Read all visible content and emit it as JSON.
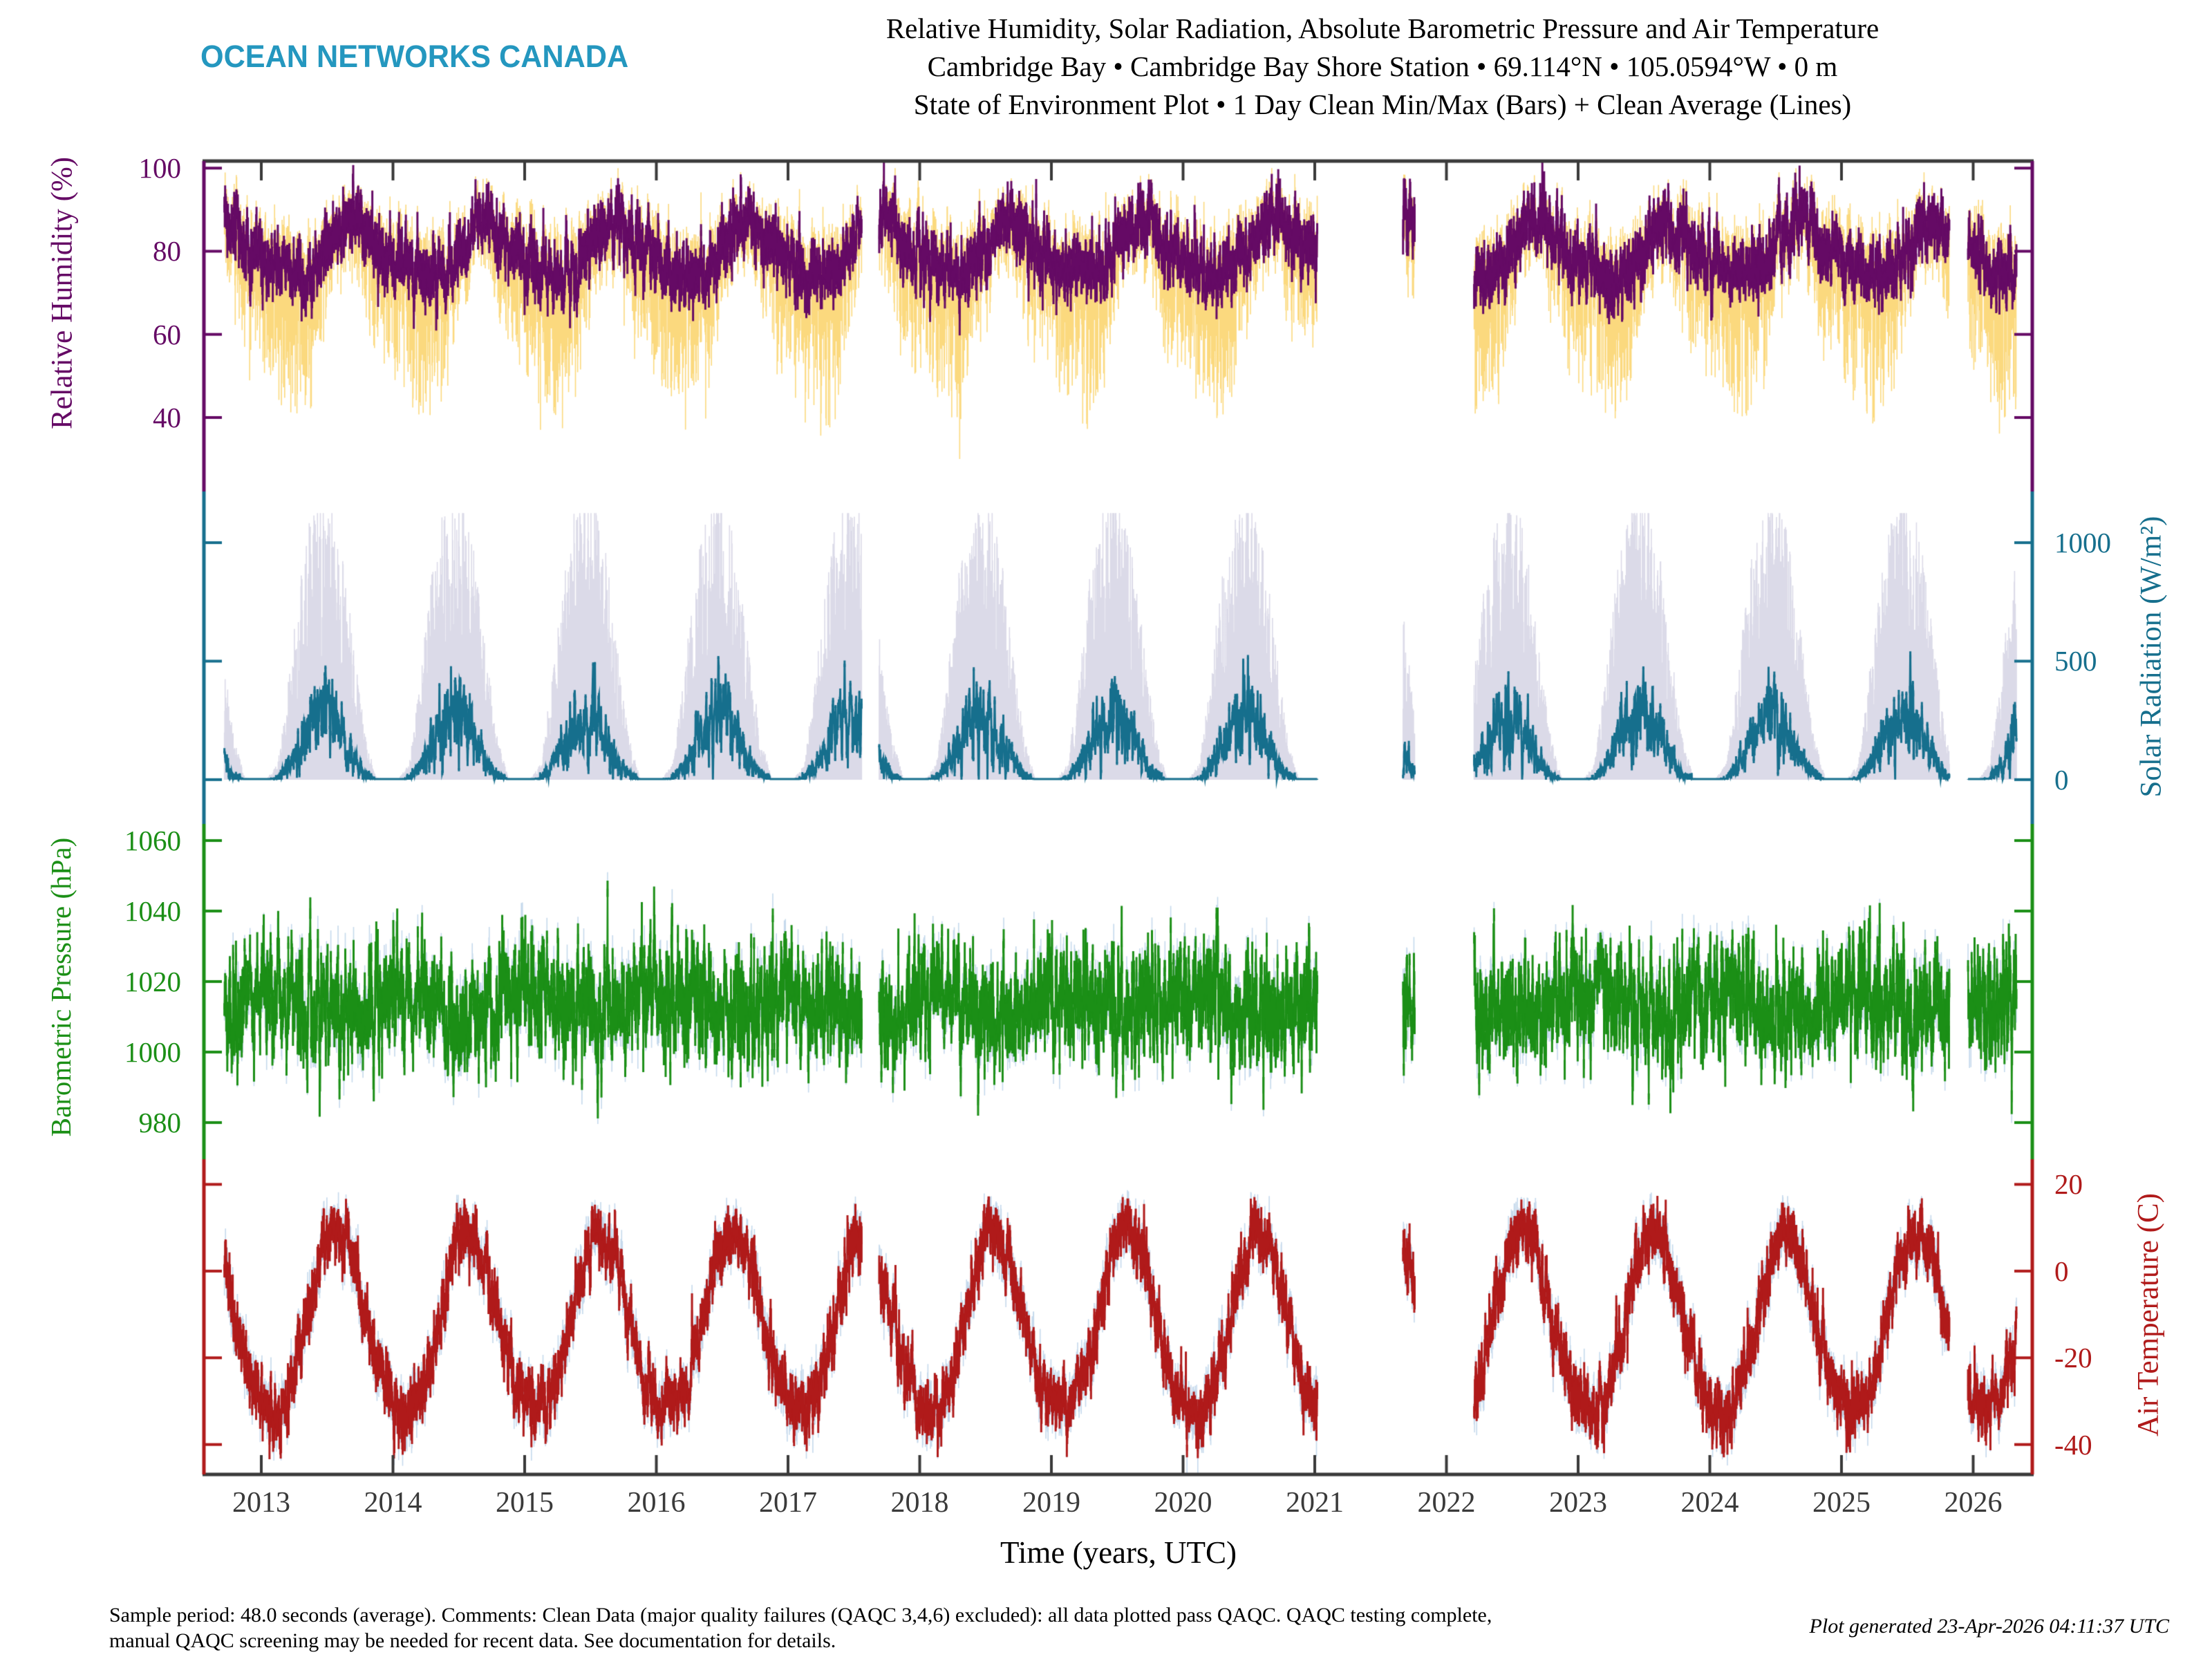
{
  "header": {
    "logo": "OCEAN NETWORKS CANADA",
    "title_line1": "Relative Humidity, Solar Radiation, Absolute Barometric Pressure and Air Temperature",
    "title_line2": "Cambridge Bay • Cambridge Bay Shore Station • 69.114°N • 105.0594°W • 0 m",
    "title_line3": "State of Environment Plot • 1 Day Clean Min/Max (Bars) + Clean Average (Lines)"
  },
  "colors": {
    "frame": "#3A3A3A",
    "background": "#FFFFFF",
    "logo": "#2497BF",
    "humidity_line": "#650A65",
    "humidity_bar": "#FBD97E",
    "solar_line": "#166F8D",
    "solar_bar": "#DBDAE8",
    "pressure_line": "#1B8F16",
    "pressure_bar": "#C5D9EC",
    "temperature_line": "#B01A1A",
    "temperature_bar": "#C5D9EC"
  },
  "x_axis": {
    "label": "Time (years, UTC)",
    "ticks": [
      2013,
      2014,
      2015,
      2016,
      2017,
      2018,
      2019,
      2020,
      2021,
      2022,
      2023,
      2024,
      2025,
      2026
    ],
    "range": [
      2012.56,
      2026.45
    ],
    "data_range": [
      2012.72,
      2026.33
    ],
    "gaps": [
      [
        2017.56,
        2017.69
      ],
      [
        2021.02,
        2021.67
      ],
      [
        2021.76,
        2022.21
      ],
      [
        2025.82,
        2025.96
      ]
    ]
  },
  "chart_data": [
    {
      "key": "humidity",
      "type": "line+minmax_bars",
      "ylabel": "Relative Humidity (%)",
      "yticks": [
        100,
        80,
        60,
        40
      ],
      "ylim": [
        22.2,
        101.7
      ],
      "avg_color": "#650A65",
      "bar_color": "#FBD97E",
      "legend": [
        "1 Day Clean Min/Max (Bars)",
        "Clean Average (Line)"
      ],
      "monthly_avg": [
        78,
        76,
        74.5,
        74,
        75.5,
        79,
        83,
        87,
        88.5,
        85,
        81,
        79
      ],
      "monthly_min_offset": [
        16,
        18,
        20,
        21,
        18,
        11,
        7,
        6,
        7,
        11,
        14,
        15
      ],
      "monthly_max_offset": [
        7,
        7,
        7,
        7,
        7,
        6,
        5,
        5,
        4,
        5,
        6,
        7
      ],
      "cap": 100,
      "noise": {
        "sigma": 3.6,
        "rho": 0.5,
        "clip": [
          56,
          97
        ]
      }
    },
    {
      "key": "solar",
      "type": "line+minmax_bars",
      "ylabel": "Solar Radiation (W/m²)",
      "yticks": [
        1000,
        500,
        0
      ],
      "ylim": [
        -187,
        1216
      ],
      "avg_color": "#166F8D",
      "bar_color": "#DBDAE8",
      "legend": [
        "1 Day Clean Min/Max (Bars)",
        "Clean Average (Line)"
      ],
      "monthly_avg": [
        1,
        6,
        55,
        150,
        230,
        278,
        252,
        165,
        78,
        18,
        1,
        0
      ],
      "monthly_max": [
        3,
        60,
        380,
        750,
        980,
        1060,
        1010,
        820,
        470,
        160,
        8,
        1
      ],
      "min_value": 0,
      "noise": {
        "sigma": 0.3,
        "rho": 0.45
      }
    },
    {
      "key": "pressure",
      "type": "line+minmax_bars",
      "ylabel": "Barometric Pressure (hPa)",
      "yticks": [
        1060,
        1040,
        1020,
        1000,
        980
      ],
      "ylim": [
        969.6,
        1064.7
      ],
      "avg_color": "#1B8F16",
      "bar_color": "#C5D9EC",
      "legend": [
        "1 Day Clean Min/Max (Bars)",
        "Clean Average (Line)"
      ],
      "monthly_avg": [
        1016,
        1016,
        1015,
        1015,
        1013,
        1011,
        1011,
        1012,
        1011,
        1012,
        1014,
        1015
      ],
      "noise": {
        "sigma": 8,
        "rho": 0.45,
        "clip": [
          977,
          1053
        ]
      }
    },
    {
      "key": "temperature",
      "type": "line+minmax_bars",
      "ylabel": "Air Temperature (C)",
      "yticks": [
        20,
        0,
        -20,
        -40
      ],
      "ylim": [
        -46.9,
        25.8
      ],
      "avg_color": "#B01A1A",
      "bar_color": "#C5D9EC",
      "legend": [
        "1 Day Clean Min/Max (Bars)",
        "Clean Average (Line)"
      ],
      "monthly_avg": [
        -32,
        -33,
        -29,
        -20,
        -8,
        3,
        9.5,
        7.5,
        0.5,
        -10,
        -21,
        -28
      ],
      "noise": {
        "sigma": 3.2,
        "rho": 0.55,
        "clip": [
          -41.5,
          13
        ]
      }
    }
  ],
  "footer": {
    "left_line1": "Sample period: 48.0 seconds (average). Comments: Clean Data (major quality failures (QAQC 3,4,6) excluded): all data plotted pass QAQC. QAQC testing complete,",
    "left_line2": "manual QAQC screening may be needed for recent data. See documentation for details.",
    "generated": "Plot generated 23-Apr-2026 04:11:37 UTC"
  }
}
